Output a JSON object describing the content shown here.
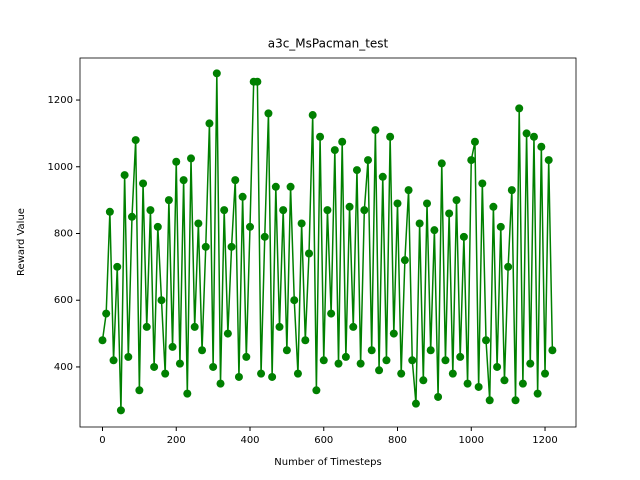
{
  "chart_data": {
    "type": "line",
    "title": "a3c_MsPacman_test",
    "x_label": "Number of Timesteps",
    "y_label": "Reward Value",
    "x": [
      0,
      10,
      20,
      30,
      40,
      50,
      60,
      70,
      80,
      90,
      100,
      110,
      120,
      130,
      140,
      150,
      160,
      170,
      180,
      190,
      200,
      210,
      220,
      230,
      240,
      250,
      260,
      270,
      280,
      290,
      300,
      310,
      320,
      330,
      340,
      350,
      360,
      370,
      380,
      390,
      400,
      410,
      420,
      430,
      440,
      450,
      460,
      470,
      480,
      490,
      500,
      510,
      520,
      530,
      540,
      550,
      560,
      570,
      580,
      590,
      600,
      610,
      620,
      630,
      640,
      650,
      660,
      670,
      680,
      690,
      700,
      710,
      720,
      730,
      740,
      750,
      760,
      770,
      780,
      790,
      800,
      810,
      820,
      830,
      840,
      850,
      860,
      870,
      880,
      890,
      900,
      910,
      920,
      930,
      940,
      950,
      960,
      970,
      980,
      990,
      1000,
      1010,
      1020,
      1030,
      1040,
      1050,
      1060,
      1070,
      1080,
      1090,
      1100,
      1110,
      1120,
      1130,
      1140,
      1150,
      1160,
      1170,
      1180,
      1190,
      1200,
      1210,
      1220
    ],
    "series": [
      {
        "color": "#008000",
        "values": [
          480,
          560,
          865,
          420,
          700,
          270,
          975,
          430,
          850,
          1080,
          330,
          950,
          520,
          870,
          400,
          820,
          600,
          380,
          900,
          460,
          1015,
          410,
          960,
          320,
          1025,
          520,
          830,
          450,
          760,
          1130,
          400,
          1280,
          350,
          870,
          500,
          760,
          960,
          370,
          910,
          430,
          820,
          1255,
          1255,
          380,
          790,
          1160,
          370,
          940,
          520,
          870,
          450,
          940,
          600,
          380,
          830,
          480,
          740,
          1155,
          330,
          1090,
          420,
          870,
          560,
          1050,
          410,
          1075,
          430,
          880,
          520,
          990,
          410,
          870,
          1020,
          450,
          1110,
          390,
          970,
          420,
          1090,
          500,
          890,
          380,
          720,
          930,
          420,
          290,
          830,
          360,
          890,
          450,
          810,
          310,
          1010,
          420,
          860,
          380,
          900,
          430,
          790,
          350,
          1020,
          1075,
          340,
          950,
          480,
          300,
          880,
          400,
          820,
          360,
          700,
          930,
          300,
          1175,
          350,
          1100,
          410,
          1090,
          320,
          1060,
          380,
          1020,
          450
        ]
      }
    ],
    "xlim": [
      -61,
      1284
    ],
    "ylim": [
      220,
      1326
    ],
    "xticks": [
      0,
      200,
      400,
      600,
      800,
      1000,
      1200
    ],
    "yticks": [
      400,
      600,
      800,
      1000,
      1200
    ]
  }
}
